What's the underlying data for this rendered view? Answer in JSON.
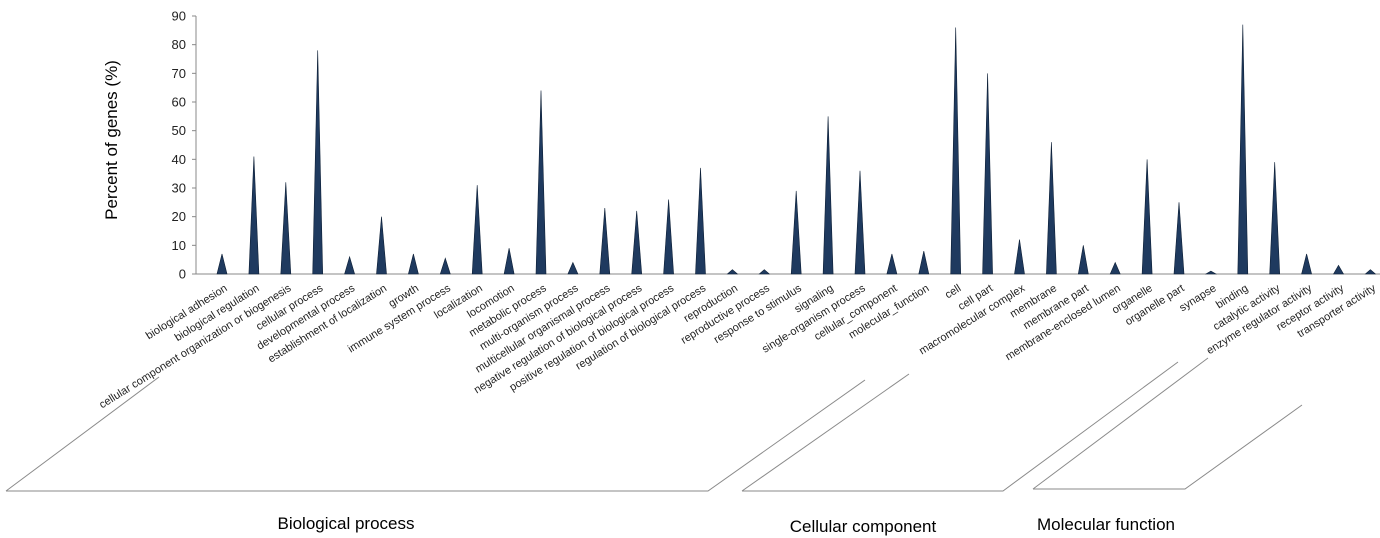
{
  "chart_data": {
    "type": "bar",
    "ylabel": "Percent of genes (%)",
    "xlabel": "",
    "ylim": [
      0,
      90
    ],
    "yticks": [
      0,
      10,
      20,
      30,
      40,
      50,
      60,
      70,
      80,
      90
    ],
    "grid": false,
    "bar_color": "#1f3a5f",
    "categories": [
      "biological adhesion",
      "biological regulation",
      "cellular component organization or biogenesis",
      "cellular process",
      "developmental process",
      "establishment of localization",
      "growth",
      "immune system process",
      "localization",
      "locomotion",
      "metabolic process",
      "multi-organism process",
      "multicellular organismal process",
      "negative regulation of biological process",
      "positive regulation of biological process",
      "regulation of biological process",
      "reproduction",
      "reproductive process",
      "response to stimulus",
      "signaling",
      "single-organism process",
      "cellular_component",
      "molecular_function",
      "cell",
      "cell part",
      "macromolecular complex",
      "membrane",
      "membrane part",
      "membrane-enclosed lumen",
      "organelle",
      "organelle part",
      "synapse",
      "binding",
      "catalytic activity",
      "enzyme regulator activity",
      "receptor activity",
      "transporter activity"
    ],
    "values": [
      7,
      41,
      32,
      78,
      6,
      20,
      7,
      5.5,
      31,
      9,
      64,
      4,
      23,
      22,
      26,
      37,
      1.5,
      1.5,
      29,
      55,
      36,
      7,
      8,
      86,
      70,
      12,
      46,
      10,
      4,
      40,
      25,
      1,
      87,
      39,
      7,
      3,
      1.5
    ],
    "groups": [
      {
        "label": "Biological process",
        "start": 0,
        "end": 22
      },
      {
        "label": "Cellular component",
        "start": 23,
        "end": 31
      },
      {
        "label": "Molecular function",
        "start": 32,
        "end": 36
      }
    ]
  }
}
